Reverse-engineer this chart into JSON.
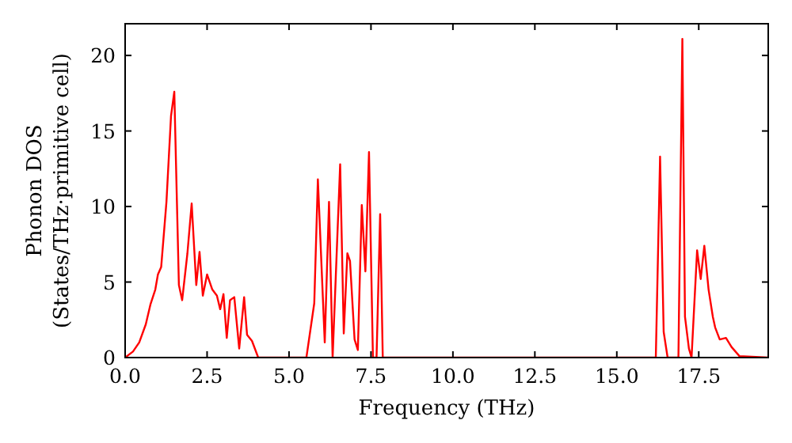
{
  "chart_data": {
    "type": "line",
    "xlabel": "Frequency (THz)",
    "ylabel": "Phonon DOS\n(States/THz·primitive cell)",
    "xlim": [
      0,
      19.62
    ],
    "ylim": [
      0,
      22.1
    ],
    "xticks": [
      {
        "value": 0,
        "label": "0.0"
      },
      {
        "value": 2.5,
        "label": "2.5"
      },
      {
        "value": 5,
        "label": "5.0"
      },
      {
        "value": 7.5,
        "label": "7.5"
      },
      {
        "value": 10,
        "label": "10.0"
      },
      {
        "value": 12.5,
        "label": "12.5"
      },
      {
        "value": 15,
        "label": "15.0"
      },
      {
        "value": 17.5,
        "label": "17.5"
      }
    ],
    "yticks": [
      0,
      5,
      10,
      15,
      20
    ],
    "grid": false,
    "marker": "none",
    "line_style": "solid",
    "series": [
      {
        "color": "#ff0000",
        "x": [
          0,
          0.24,
          0.43,
          0.63,
          0.77,
          0.92,
          1.0,
          1.1,
          1.26,
          1.4,
          1.5,
          1.64,
          1.74,
          1.9,
          2.03,
          2.17,
          2.27,
          2.37,
          2.5,
          2.66,
          2.8,
          2.9,
          3.0,
          3.1,
          3.2,
          3.33,
          3.48,
          3.63,
          3.72,
          3.87,
          4.06,
          5.53,
          5.77,
          5.88,
          6.09,
          6.22,
          6.33,
          6.56,
          6.67,
          6.78,
          6.86,
          7.0,
          7.1,
          7.22,
          7.33,
          7.44,
          7.56,
          7.67,
          7.78,
          7.86,
          16.19,
          16.32,
          16.43,
          16.55,
          16.88,
          17.0,
          17.08,
          17.2,
          17.28,
          17.45,
          17.56,
          17.67,
          17.8,
          17.93,
          18.0,
          18.14,
          18.33,
          18.5,
          18.74,
          19.62
        ],
        "values": [
          0,
          0.4,
          1.0,
          2.2,
          3.5,
          4.5,
          5.5,
          6,
          10.3,
          16,
          17.6,
          4.8,
          3.8,
          6.9,
          10.2,
          4.8,
          7,
          4.1,
          5.5,
          4.5,
          4.1,
          3.2,
          4.2,
          1.3,
          3.8,
          4.0,
          0.6,
          4.0,
          1.5,
          1.1,
          0,
          0,
          3.6,
          11.8,
          1.0,
          10.3,
          0,
          12.8,
          1.6,
          6.9,
          6.4,
          1.2,
          0.5,
          10.1,
          5.7,
          13.6,
          0,
          0,
          9.5,
          0,
          0,
          13.3,
          1.7,
          0,
          0,
          21.1,
          2.7,
          0.6,
          0,
          7.1,
          5.2,
          7.4,
          4.5,
          2.7,
          2.0,
          1.2,
          1.3,
          0.7,
          0.1,
          0
        ]
      }
    ]
  }
}
